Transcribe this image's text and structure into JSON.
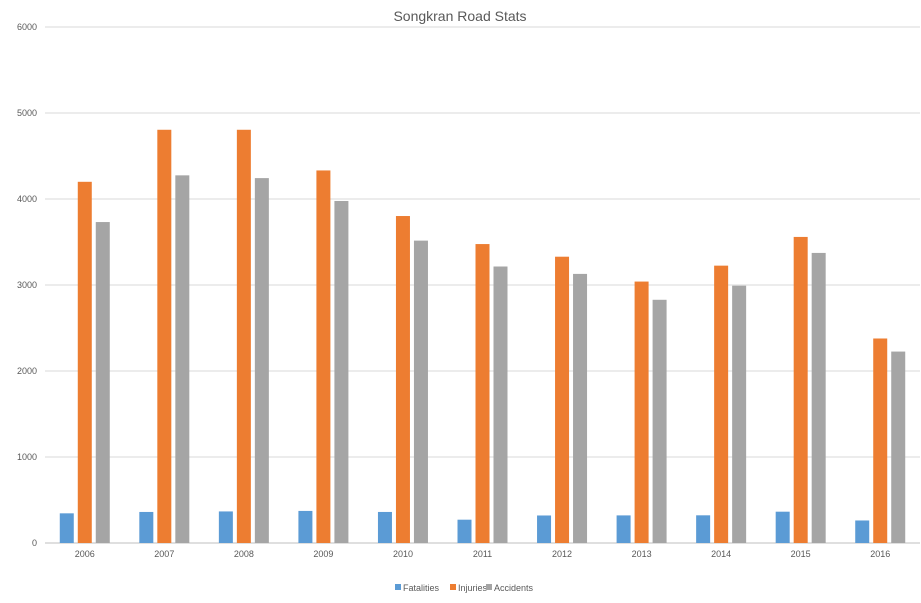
{
  "chart_data": {
    "type": "bar",
    "title": "Songkran Road Stats",
    "xlabel": "",
    "ylabel": "",
    "ylim": [
      0,
      6000
    ],
    "yticks": [
      0,
      1000,
      2000,
      3000,
      4000,
      5000,
      6000
    ],
    "grid": true,
    "legend_position": "bottom",
    "categories": [
      "2006",
      "2007",
      "2008",
      "2009",
      "2010",
      "2011",
      "2012",
      "2013",
      "2014",
      "2015",
      "2016"
    ],
    "series": [
      {
        "name": "Fatalities",
        "color": "#5b9bd5",
        "values": [
          345,
          361,
          367,
          373,
          361,
          271,
          320,
          321,
          322,
          364,
          262
        ]
      },
      {
        "name": "Injuries",
        "color": "#ed7d31",
        "values": [
          4200,
          4805,
          4805,
          4332,
          3802,
          3476,
          3329,
          3040,
          3225,
          3559,
          2378
        ]
      },
      {
        "name": "Accidents",
        "color": "#a5a5a5",
        "values": [
          3732,
          4275,
          4243,
          3977,
          3516,
          3215,
          3129,
          2828,
          2992,
          3373,
          2226
        ]
      }
    ]
  }
}
